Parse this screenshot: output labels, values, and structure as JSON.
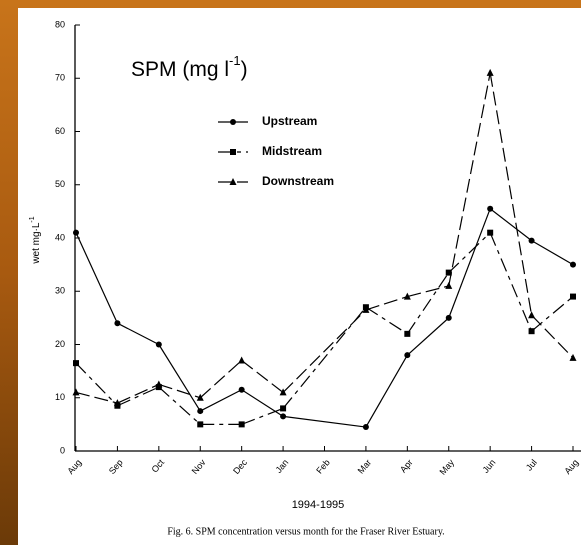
{
  "chart_data": {
    "type": "line",
    "annotation": {
      "text": "SPM (mg l",
      "sup": "-1",
      "end": ")"
    },
    "ylabel": {
      "text": "wet mg·L",
      "sup": "-1"
    },
    "xlabel": "1994-1995",
    "caption": "Fig. 6. SPM concentration versus month for the Fraser River Estuary.",
    "categories": [
      "Aug",
      "Sep",
      "Oct",
      "Nov",
      "Dec",
      "Jan",
      "Feb",
      "Mar",
      "Apr",
      "May",
      "Jun",
      "Jul",
      "Aug"
    ],
    "series": [
      {
        "name": "Upstream",
        "color": "#000000",
        "marker": "circle",
        "dash": "none",
        "values": [
          41,
          24,
          20,
          7.5,
          11.5,
          6.5,
          null,
          4.5,
          18,
          25,
          45.5,
          39.5,
          35
        ]
      },
      {
        "name": "Midstream",
        "color": "#000000",
        "marker": "square",
        "dash": "14 5 4 5",
        "values": [
          16.5,
          8.5,
          12,
          5,
          5,
          8,
          null,
          27,
          22,
          33.5,
          41,
          22.5,
          29
        ]
      },
      {
        "name": "Downstream",
        "color": "#000000",
        "marker": "triangle",
        "dash": "14 5",
        "values": [
          11,
          9,
          12.5,
          10,
          17,
          11,
          null,
          26.5,
          29,
          31,
          71,
          25.5,
          17.5
        ]
      }
    ],
    "ylim": [
      0,
      80
    ],
    "yticks": [
      0,
      10,
      20,
      30,
      40,
      50,
      60,
      70,
      80
    ]
  }
}
